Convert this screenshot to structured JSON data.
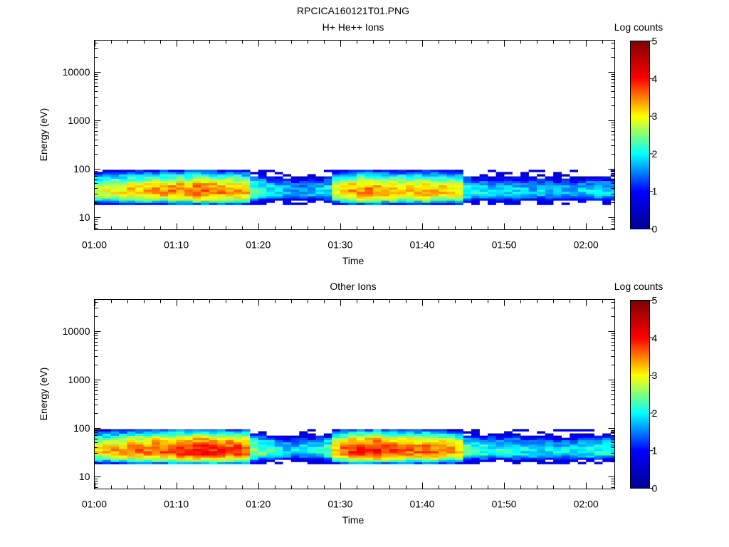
{
  "figure": {
    "title": "RPCICA160121T01.PNG",
    "colorbar": {
      "label": "Log counts",
      "ticks": [
        "0",
        "1",
        "2",
        "3",
        "4",
        "5"
      ],
      "range": [
        0,
        5
      ],
      "colormap": [
        "#00008f",
        "#0000ff",
        "#00ffff",
        "#ffff00",
        "#ff0000",
        "#800000"
      ]
    }
  },
  "chart_data": [
    {
      "type": "heatmap",
      "title": "H+ He++ Ions",
      "xlabel": "Time",
      "ylabel": "Energy (eV)",
      "x_ticks": [
        "01:00",
        "01:10",
        "01:20",
        "01:30",
        "01:40",
        "01:50",
        "02:00"
      ],
      "x_tick_minutes": [
        0,
        10,
        20,
        30,
        40,
        50,
        60
      ],
      "x_range_minutes": [
        0,
        63.5
      ],
      "x_start": "01:00",
      "y_ticks": [
        "10",
        "100",
        "1000",
        "10000"
      ],
      "y_tick_values": [
        10,
        100,
        1000,
        10000
      ],
      "y_scale": "log",
      "ylim": [
        5.5,
        45000
      ],
      "band_energy_eV": [
        18,
        95
      ],
      "time_bins_minutes": [
        0,
        1,
        2,
        3,
        4,
        5,
        6,
        7,
        8,
        9,
        10,
        11,
        12,
        13,
        14,
        15,
        16,
        17,
        18,
        19,
        20,
        21,
        22,
        23,
        24,
        25,
        26,
        27,
        28,
        29,
        30,
        31,
        32,
        33,
        34,
        35,
        36,
        37,
        38,
        39,
        40,
        41,
        42,
        43,
        44,
        45,
        46,
        47,
        48,
        49,
        50,
        51,
        52,
        53,
        54,
        55,
        56,
        57,
        58,
        59,
        60,
        61,
        62,
        63
      ],
      "peak_log_counts": [
        2.9,
        3.0,
        3.1,
        3.1,
        3.2,
        3.3,
        3.3,
        3.4,
        3.4,
        3.5,
        3.5,
        3.5,
        3.6,
        3.6,
        3.5,
        3.5,
        3.4,
        3.4,
        3.3,
        2.4,
        2.2,
        2.0,
        1.9,
        1.8,
        1.7,
        1.7,
        1.8,
        1.9,
        2.0,
        2.9,
        3.2,
        3.4,
        3.5,
        3.5,
        3.5,
        3.4,
        3.3,
        3.3,
        3.3,
        3.3,
        3.4,
        3.3,
        3.2,
        3.2,
        3.1,
        2.2,
        2.0,
        2.0,
        1.9,
        1.9,
        1.9,
        1.9,
        1.8,
        1.8,
        1.8,
        1.8,
        1.7,
        1.7,
        1.7,
        1.8,
        1.9,
        1.9,
        1.9,
        1.8
      ]
    },
    {
      "type": "heatmap",
      "title": "Other Ions",
      "xlabel": "Time",
      "ylabel": "Energy (eV)",
      "x_ticks": [
        "01:00",
        "01:10",
        "01:20",
        "01:30",
        "01:40",
        "01:50",
        "02:00"
      ],
      "x_tick_minutes": [
        0,
        10,
        20,
        30,
        40,
        50,
        60
      ],
      "x_range_minutes": [
        0,
        63.5
      ],
      "x_start": "01:00",
      "y_ticks": [
        "10",
        "100",
        "1000",
        "10000"
      ],
      "y_tick_values": [
        10,
        100,
        1000,
        10000
      ],
      "y_scale": "log",
      "ylim": [
        5.5,
        45000
      ],
      "band_energy_eV": [
        18,
        95
      ],
      "time_bins_minutes": [
        0,
        1,
        2,
        3,
        4,
        5,
        6,
        7,
        8,
        9,
        10,
        11,
        12,
        13,
        14,
        15,
        16,
        17,
        18,
        19,
        20,
        21,
        22,
        23,
        24,
        25,
        26,
        27,
        28,
        29,
        30,
        31,
        32,
        33,
        34,
        35,
        36,
        37,
        38,
        39,
        40,
        41,
        42,
        43,
        44,
        45,
        46,
        47,
        48,
        49,
        50,
        51,
        52,
        53,
        54,
        55,
        56,
        57,
        58,
        59,
        60,
        61,
        62,
        63
      ],
      "peak_log_counts": [
        3.1,
        3.2,
        3.3,
        3.4,
        3.5,
        3.6,
        3.6,
        3.7,
        3.7,
        3.8,
        3.9,
        3.9,
        4.0,
        4.0,
        3.9,
        3.9,
        3.8,
        3.8,
        3.7,
        2.6,
        2.4,
        2.2,
        2.0,
        1.9,
        1.9,
        1.9,
        2.0,
        2.1,
        2.3,
        3.3,
        3.6,
        3.8,
        3.9,
        3.9,
        4.0,
        3.8,
        3.7,
        3.6,
        3.6,
        3.6,
        3.7,
        3.6,
        3.5,
        3.4,
        3.3,
        2.4,
        2.2,
        2.2,
        2.1,
        2.1,
        2.1,
        2.1,
        2.0,
        2.0,
        2.0,
        2.0,
        1.9,
        1.9,
        1.9,
        2.0,
        2.1,
        2.1,
        2.1,
        2.0
      ]
    }
  ]
}
